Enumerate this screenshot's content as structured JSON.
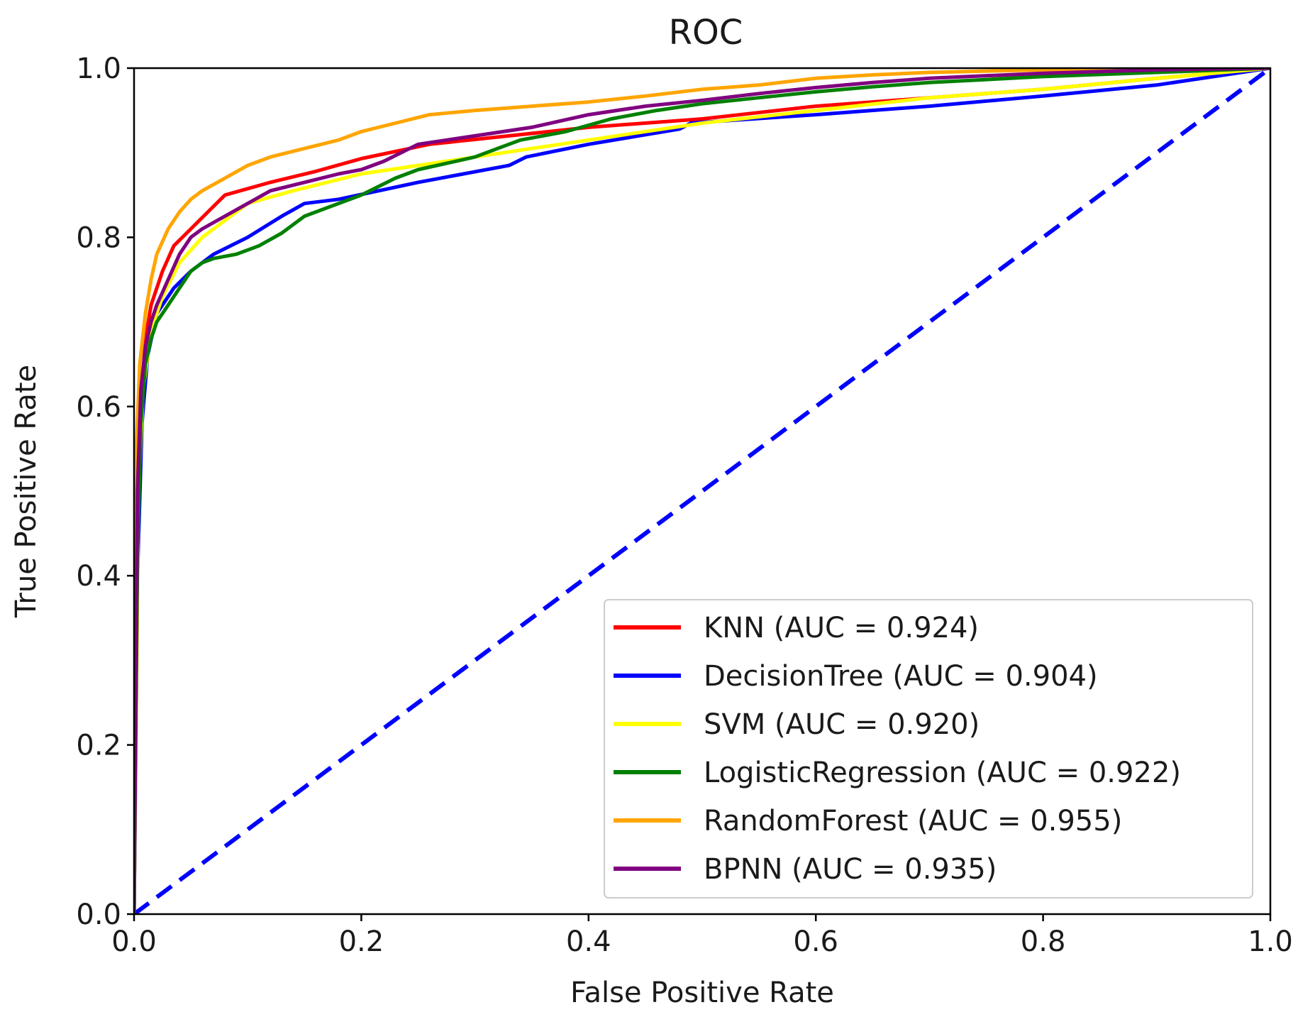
{
  "chart_data": {
    "type": "line",
    "title": "ROC",
    "xlabel": "False Positive Rate",
    "ylabel": "True Positive Rate",
    "xlim": [
      0,
      1
    ],
    "ylim": [
      0,
      1
    ],
    "xticks": [
      "0.0",
      "0.2",
      "0.4",
      "0.6",
      "0.8",
      "1.0"
    ],
    "yticks": [
      "0.0",
      "0.2",
      "0.4",
      "0.6",
      "0.8",
      "1.0"
    ],
    "grid": false,
    "legend_position": "lower-right",
    "series": [
      {
        "name": "KNN",
        "label": "KNN (AUC = 0.924)",
        "auc": 0.924,
        "color": "#ff0000",
        "x": [
          0,
          0.003,
          0.006,
          0.01,
          0.015,
          0.025,
          0.035,
          0.05,
          0.065,
          0.08,
          0.12,
          0.16,
          0.2,
          0.26,
          0.33,
          0.4,
          0.5,
          0.6,
          0.7,
          0.8,
          0.9,
          1.0
        ],
        "y": [
          0,
          0.45,
          0.6,
          0.68,
          0.72,
          0.76,
          0.79,
          0.81,
          0.83,
          0.85,
          0.865,
          0.878,
          0.893,
          0.91,
          0.92,
          0.93,
          0.94,
          0.955,
          0.965,
          0.975,
          0.988,
          1.0
        ]
      },
      {
        "name": "DecisionTree",
        "label": "DecisionTree (AUC = 0.904)",
        "auc": 0.904,
        "color": "#0000ff",
        "x": [
          0,
          0.003,
          0.007,
          0.012,
          0.02,
          0.035,
          0.05,
          0.07,
          0.1,
          0.13,
          0.15,
          0.18,
          0.25,
          0.33,
          0.345,
          0.4,
          0.48,
          0.49,
          0.6,
          0.7,
          0.8,
          0.9,
          1.0
        ],
        "y": [
          0,
          0.4,
          0.58,
          0.66,
          0.71,
          0.74,
          0.76,
          0.78,
          0.8,
          0.825,
          0.84,
          0.845,
          0.865,
          0.885,
          0.895,
          0.91,
          0.928,
          0.935,
          0.945,
          0.955,
          0.967,
          0.98,
          1.0
        ]
      },
      {
        "name": "SVM",
        "label": "SVM (AUC = 0.920)",
        "auc": 0.92,
        "color": "#ffff00",
        "x": [
          0,
          0.004,
          0.008,
          0.015,
          0.025,
          0.04,
          0.06,
          0.08,
          0.1,
          0.14,
          0.2,
          0.25,
          0.3,
          0.35,
          0.4,
          0.5,
          0.6,
          0.7,
          0.8,
          0.9,
          1.0
        ],
        "y": [
          0,
          0.5,
          0.62,
          0.69,
          0.73,
          0.77,
          0.8,
          0.82,
          0.84,
          0.855,
          0.875,
          0.885,
          0.895,
          0.905,
          0.915,
          0.935,
          0.95,
          0.965,
          0.975,
          0.988,
          1.0
        ]
      },
      {
        "name": "LogisticRegression",
        "label": "LogisticRegression (AUC = 0.922)",
        "auc": 0.922,
        "color": "#008000",
        "x": [
          0,
          0.003,
          0.006,
          0.01,
          0.015,
          0.02,
          0.03,
          0.04,
          0.05,
          0.06,
          0.07,
          0.09,
          0.11,
          0.13,
          0.15,
          0.17,
          0.2,
          0.23,
          0.25,
          0.3,
          0.32,
          0.34,
          0.38,
          0.42,
          0.46,
          0.5,
          0.55,
          0.6,
          0.65,
          0.7,
          0.8,
          0.9,
          1.0
        ],
        "y": [
          0,
          0.42,
          0.58,
          0.65,
          0.68,
          0.7,
          0.72,
          0.74,
          0.76,
          0.77,
          0.775,
          0.78,
          0.79,
          0.805,
          0.825,
          0.835,
          0.85,
          0.87,
          0.88,
          0.895,
          0.905,
          0.915,
          0.925,
          0.94,
          0.95,
          0.958,
          0.965,
          0.972,
          0.978,
          0.983,
          0.99,
          0.995,
          1.0
        ]
      },
      {
        "name": "RandomForest",
        "label": "RandomForest (AUC = 0.955)",
        "auc": 0.955,
        "color": "#ffa500",
        "x": [
          0,
          0.002,
          0.005,
          0.01,
          0.015,
          0.02,
          0.03,
          0.04,
          0.05,
          0.06,
          0.08,
          0.1,
          0.12,
          0.15,
          0.18,
          0.2,
          0.23,
          0.26,
          0.3,
          0.35,
          0.4,
          0.45,
          0.5,
          0.55,
          0.6,
          0.65,
          0.7,
          0.8,
          0.9,
          1.0
        ],
        "y": [
          0,
          0.55,
          0.65,
          0.71,
          0.75,
          0.78,
          0.81,
          0.83,
          0.845,
          0.855,
          0.87,
          0.885,
          0.895,
          0.905,
          0.915,
          0.925,
          0.935,
          0.945,
          0.95,
          0.955,
          0.96,
          0.967,
          0.975,
          0.98,
          0.988,
          0.992,
          0.995,
          0.998,
          0.999,
          1.0
        ]
      },
      {
        "name": "BPNN",
        "label": "BPNN (AUC = 0.935)",
        "auc": 0.935,
        "color": "#800080",
        "x": [
          0,
          0.003,
          0.006,
          0.01,
          0.015,
          0.02,
          0.03,
          0.04,
          0.05,
          0.06,
          0.08,
          0.1,
          0.12,
          0.15,
          0.18,
          0.2,
          0.22,
          0.25,
          0.3,
          0.35,
          0.4,
          0.45,
          0.5,
          0.55,
          0.6,
          0.65,
          0.7,
          0.8,
          0.9,
          1.0
        ],
        "y": [
          0,
          0.5,
          0.62,
          0.67,
          0.7,
          0.72,
          0.75,
          0.78,
          0.8,
          0.81,
          0.825,
          0.84,
          0.855,
          0.865,
          0.875,
          0.88,
          0.89,
          0.91,
          0.92,
          0.93,
          0.945,
          0.955,
          0.962,
          0.97,
          0.977,
          0.983,
          0.988,
          0.994,
          0.998,
          1.0
        ]
      }
    ],
    "diagonal": {
      "x": [
        0,
        1
      ],
      "y": [
        0,
        1
      ],
      "color": "#0000ff",
      "style": "dashed"
    }
  }
}
